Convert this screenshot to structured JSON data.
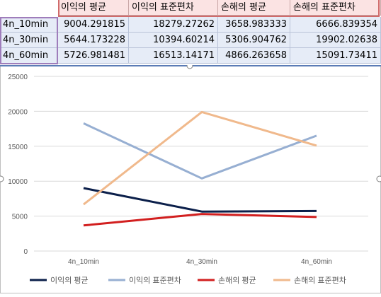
{
  "table": {
    "headers": [
      "이익의 평균",
      "이익의 표준편차",
      "손해의 평균",
      "손해의 표준편차"
    ],
    "rows": [
      {
        "label": "4n_10min",
        "values": [
          "9004.291815",
          "18279.27262",
          "3658.983333",
          "6666.839354"
        ]
      },
      {
        "label": "4n_30min",
        "values": [
          "5644.173228",
          "10394.60214",
          "5306.904762",
          "19902.02638"
        ]
      },
      {
        "label": "4n_60min",
        "values": [
          "5726.981481",
          "16513.14171",
          "4866.263658",
          "15091.73411"
        ]
      }
    ]
  },
  "chart_data": {
    "type": "line",
    "categories": [
      "4n_10min",
      "4n_30min",
      "4n_60min"
    ],
    "series": [
      {
        "name": "이익의 평균",
        "color": "#0b1f4a",
        "values": [
          9004.291815,
          5644.173228,
          5726.981481
        ]
      },
      {
        "name": "이익의 표준편차",
        "color": "#97afd2",
        "values": [
          18279.27262,
          10394.60214,
          16513.14171
        ]
      },
      {
        "name": "손해의 평균",
        "color": "#d21f1f",
        "values": [
          3658.983333,
          5306.904762,
          4866.263658
        ]
      },
      {
        "name": "손해의 표준편차",
        "color": "#f0b98c",
        "values": [
          6666.839354,
          19902.02638,
          15091.73411
        ]
      }
    ],
    "yticks": [
      "0",
      "5000",
      "10000",
      "15000",
      "20000",
      "25000"
    ],
    "ylim": [
      0,
      25000
    ],
    "grid": true,
    "legend_position": "bottom"
  }
}
